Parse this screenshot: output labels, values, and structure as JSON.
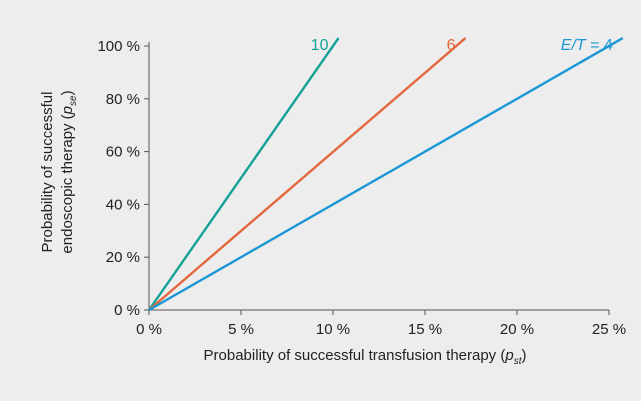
{
  "chart_data": {
    "type": "line",
    "xlabel": {
      "main": "Probability of successful transfusion therapy (",
      "var": "p",
      "sub": "st",
      "close": ")"
    },
    "ylabel": {
      "line1": "Probability of successful",
      "line2_main": "endoscopic therapy (",
      "var": "p",
      "sub": "se",
      "close": ")"
    },
    "xlim": [
      0,
      25
    ],
    "ylim": [
      0,
      100
    ],
    "x_ticks": [
      0,
      5,
      10,
      15,
      20,
      25
    ],
    "y_ticks": [
      0,
      20,
      40,
      60,
      80,
      100
    ],
    "x_tick_labels": [
      "0 %",
      "5 %",
      "10 %",
      "15 %",
      "20 %",
      "25 %"
    ],
    "y_tick_labels": [
      "0 %",
      "20 %",
      "40 %",
      "60 %",
      "80 %",
      "100 %"
    ],
    "grid": false,
    "series": [
      {
        "name": "10",
        "label_text": "10",
        "color": "#13a195",
        "x": [
          0,
          10.3
        ],
        "y": [
          0,
          103
        ]
      },
      {
        "name": "6",
        "label_text": "6",
        "color": "#e4673d",
        "x": [
          0,
          17.2
        ],
        "y": [
          0,
          103
        ]
      },
      {
        "name": "E/T = 4",
        "label_var": "E/T",
        "label_rest": " = 4",
        "color": "#1b97d5",
        "x": [
          0,
          25.75
        ],
        "y": [
          0,
          103
        ]
      }
    ]
  }
}
